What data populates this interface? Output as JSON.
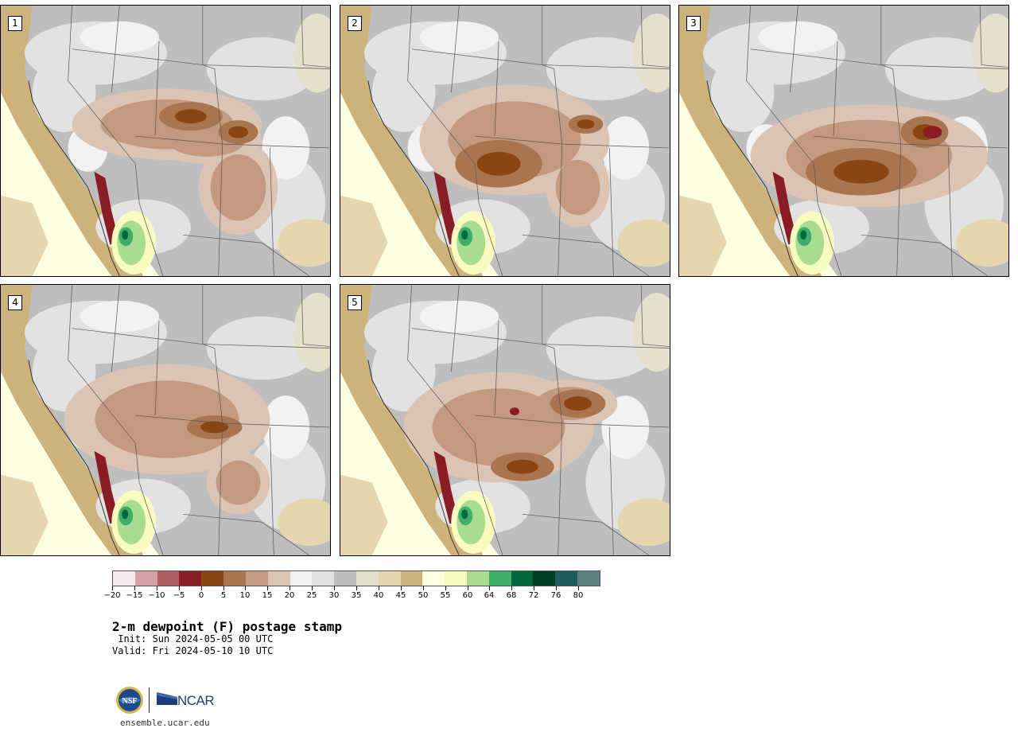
{
  "panels": [
    {
      "label": "1"
    },
    {
      "label": "2"
    },
    {
      "label": "3"
    },
    {
      "label": "4"
    },
    {
      "label": "5"
    }
  ],
  "colorbar": {
    "colors": [
      "#f5e8ea",
      "#d4a1a5",
      "#b05f66",
      "#8a1c26",
      "#8b4513",
      "#a87550",
      "#c39a80",
      "#dcc4b4",
      "#f2f2f2",
      "#e2e2e2",
      "#bebebe",
      "#e4e0cc",
      "#e6d6ad",
      "#cdb27c",
      "#fefee2",
      "#f8fcbe",
      "#a8dc90",
      "#3fae68",
      "#00683a",
      "#003d22",
      "#1f5c5c",
      "#5a8282"
    ],
    "tick_labels": [
      "−20",
      "−15",
      "−10",
      "−5",
      "0",
      "5",
      "10",
      "15",
      "20",
      "25",
      "30",
      "35",
      "40",
      "45",
      "50",
      "55",
      "60",
      "64",
      "68",
      "72",
      "76",
      "80"
    ]
  },
  "title": "2-m dewpoint (F) postage stamp",
  "init": " Init: Sun 2024-05-05 00 UTC",
  "valid": "Valid: Fri 2024-05-10 10 UTC",
  "logos": {
    "nsf": "NSF",
    "ncar": "NCAR"
  },
  "url": "ensemble.ucar.edu"
}
